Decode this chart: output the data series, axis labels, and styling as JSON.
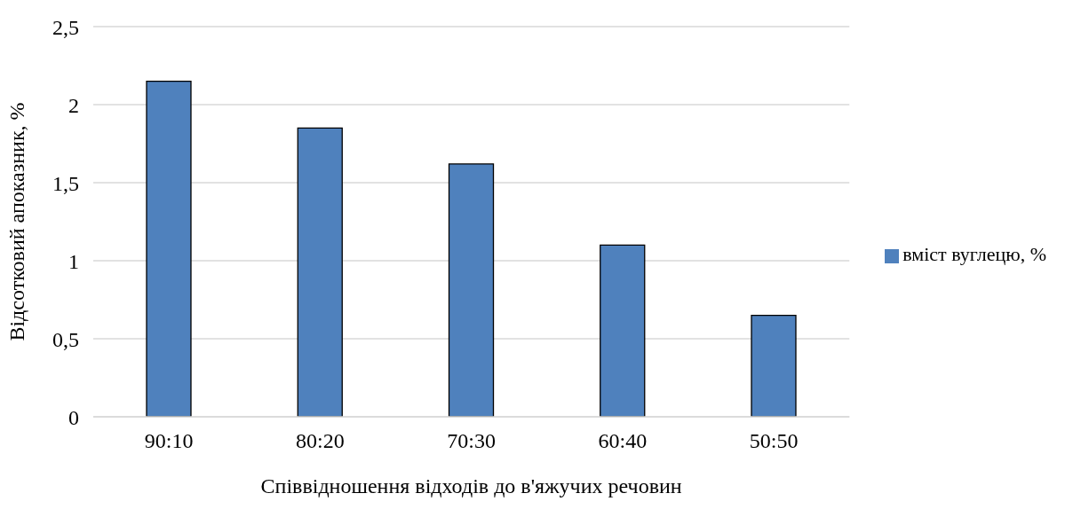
{
  "chart_data": {
    "type": "bar",
    "xlabel": "Співвідношення відходів до в'яжучих речовин",
    "ylabel": "Відсотковий апоказник, %",
    "categories": [
      "90:10",
      "80:20",
      "70:30",
      "60:40",
      "50:50"
    ],
    "series": [
      {
        "name": "вміст вуглецю, %",
        "color": "#4f81bd",
        "values": [
          2.15,
          1.85,
          1.62,
          1.1,
          0.65
        ]
      }
    ],
    "ylim": [
      0,
      2.5
    ],
    "yticks": [
      0,
      {
        "value": 0.5,
        "label": "0,5"
      },
      1,
      {
        "value": 1.5,
        "label": "1,5"
      },
      2,
      {
        "value": 2.5,
        "label": "2,5"
      }
    ],
    "grid": "y",
    "legend": "right"
  }
}
